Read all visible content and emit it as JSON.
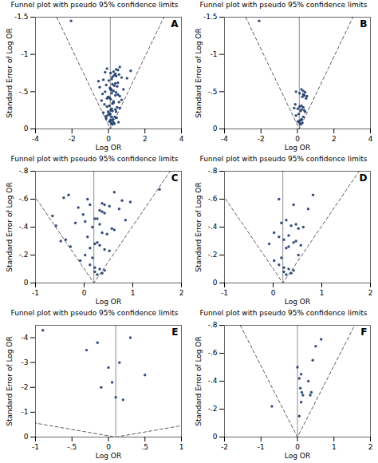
{
  "chart_data": [
    {
      "type": "scatter",
      "title": "Funnel plot with pseudo 95% confidence limits",
      "xlabel": "Log OR",
      "ylabel": "Standard Error of Log OR",
      "annotation": "A",
      "color": "#1f3c6e",
      "xlim": [
        -4,
        4
      ],
      "ylim": [
        0,
        -1.5
      ],
      "xticks": [
        -4,
        -2,
        0,
        2,
        4
      ],
      "yticks": [
        0,
        {
          "value": -0.5,
          "label": "-.5"
        },
        -1,
        -1.5
      ],
      "center_line": 0.1,
      "funnel": {
        "x": [
          -2.84,
          0.1,
          3.04
        ],
        "y": [
          -1.5,
          0,
          -1.5
        ],
        "line_style": "dashed"
      },
      "x": [
        0.15,
        0.25,
        0.05,
        0.2,
        -0.05,
        0.35,
        0.1,
        0.3,
        -0.02,
        0.12,
        0.45,
        -0.15,
        0.22,
        0.08,
        -0.12,
        0.55,
        0.02,
        0.32,
        -0.28,
        0.18,
        0.62,
        0.12,
        0.42,
        -0.08,
        0.38,
        -0.22,
        0.18,
        0.48,
        0.05,
        0.22,
        -0.38,
        0.28,
        0.12,
        0.58,
        -0.02,
        0.28,
        0.72,
        -0.08,
        0.22,
        0.05,
        0.18,
        0.38,
        -0.18,
        0.52,
        0.12,
        -0.32,
        0.42,
        0.28,
        0.62,
        0.18,
        0.82,
        0.08,
        0.32,
        -0.48,
        0.22,
        0.48,
        -0.12,
        0.38,
        0.12,
        0.52,
        1.02,
        0.02,
        0.22,
        -0.28,
        0.58,
        0.18,
        0.72,
        0.42,
        -0.55,
        0.32,
        1.22,
        0.12,
        0.42,
        -0.18,
        0.62,
        0.28,
        0.52,
        -0.08,
        0.38,
        -2.05
      ],
      "y": [
        -0.08,
        -0.13,
        -0.1,
        -0.06,
        -0.18,
        -0.16,
        -0.2,
        -0.08,
        -0.23,
        -0.12,
        -0.15,
        -0.17,
        -0.11,
        -0.19,
        -0.14,
        -0.09,
        -0.21,
        -0.07,
        -0.22,
        -0.16,
        -0.28,
        -0.25,
        -0.23,
        -0.3,
        -0.26,
        -0.33,
        -0.27,
        -0.29,
        -0.31,
        -0.24,
        -0.38,
        -0.35,
        -0.4,
        -0.36,
        -0.43,
        -0.37,
        -0.39,
        -0.41,
        -0.34,
        -0.42,
        -0.48,
        -0.45,
        -0.5,
        -0.46,
        -0.53,
        -0.47,
        -0.49,
        -0.51,
        -0.44,
        -0.52,
        -0.53,
        -0.55,
        -0.58,
        -0.56,
        -0.6,
        -0.57,
        -0.59,
        -0.61,
        -0.54,
        -0.62,
        -0.68,
        -0.65,
        -0.7,
        -0.66,
        -0.73,
        -0.67,
        -0.69,
        -0.71,
        -0.64,
        -0.72,
        -0.78,
        -0.75,
        -0.8,
        -0.76,
        -0.83,
        -0.77,
        -0.79,
        -0.81,
        -0.74,
        -1.45
      ]
    },
    {
      "type": "scatter",
      "title": "Funnel plot with pseudo 95% confidence limits",
      "xlabel": "Log OR",
      "ylabel": "Standard Error of Log OR",
      "annotation": "B",
      "color": "#1f3c6e",
      "xlim": [
        -4,
        4
      ],
      "ylim": [
        0,
        -1.5
      ],
      "xticks": [
        -4,
        -2,
        0,
        2,
        4
      ],
      "yticks": [
        0,
        {
          "value": -0.5,
          "label": "-.5"
        },
        -1,
        -1.5
      ],
      "center_line": 0.1,
      "funnel": {
        "x": [
          -2.84,
          0.1,
          3.04
        ],
        "y": [
          -1.5,
          0,
          -1.5
        ],
        "line_style": "dashed"
      },
      "x": [
        0.12,
        0.22,
        0.02,
        0.17,
        -0.08,
        0.32,
        0.07,
        0.27,
        0.22,
        0.12,
        0.42,
        -0.18,
        0.22,
        0.12,
        -0.12,
        0.37,
        0.02,
        0.32,
        0.17,
        0.22,
        0.27,
        0.12,
        0.32,
        -0.08,
        0.37,
        0.47,
        0.22,
        0.42,
        0.52,
        0.32,
        -2.1
      ],
      "y": [
        -0.08,
        -0.13,
        -0.1,
        -0.06,
        -0.18,
        -0.16,
        -0.2,
        -0.08,
        -0.12,
        -0.11,
        -0.23,
        -0.28,
        -0.26,
        -0.3,
        -0.33,
        -0.25,
        -0.27,
        -0.29,
        -0.24,
        -0.31,
        -0.43,
        -0.48,
        -0.46,
        -0.5,
        -0.45,
        -0.41,
        -0.53,
        -0.49,
        -0.44,
        -0.51,
        -1.45
      ]
    },
    {
      "type": "scatter",
      "title": "Funnel plot with pseudo 95% confidence limits",
      "xlabel": "Log OR",
      "ylabel": "Standard Error of Log OR",
      "annotation": "C",
      "color": "#1f3c6e",
      "xlim": [
        -1,
        2
      ],
      "ylim": [
        0,
        -0.8
      ],
      "xticks": [
        -1,
        0,
        1,
        2
      ],
      "yticks": [
        0,
        {
          "value": -0.2,
          "label": "-.2"
        },
        {
          "value": -0.4,
          "label": "-.4"
        },
        {
          "value": -0.6,
          "label": "-.6"
        },
        {
          "value": -0.8,
          "label": "-.8"
        }
      ],
      "center_line": 0.2,
      "funnel": {
        "x": [
          -1.368,
          0.2,
          1.768
        ],
        "y": [
          -0.8,
          0,
          -0.8
        ],
        "line_style": "dashed"
      },
      "x": [
        0.22,
        0.32,
        0.12,
        0.27,
        -0.08,
        0.42,
        0.17,
        0.37,
        0.02,
        0.22,
        0.52,
        -0.28,
        0.22,
        0.12,
        -0.48,
        0.32,
        0.07,
        0.42,
        -0.38,
        0.27,
        0.62,
        0.17,
        0.37,
        -0.18,
        0.47,
        -0.58,
        0.27,
        0.57,
        0.02,
        0.32,
        -0.65,
        0.42,
        0.22,
        0.72,
        -0.02,
        0.37,
        0.85,
        -0.12,
        0.32,
        0.12,
        0.95,
        0.07,
        0.42,
        -0.32,
        0.52,
        -0.42,
        0.62,
        0.37,
        0.78,
        1.55
      ],
      "y": [
        -0.08,
        -0.1,
        -0.13,
        -0.06,
        -0.16,
        -0.09,
        -0.18,
        -0.07,
        -0.2,
        -0.11,
        -0.23,
        -0.26,
        -0.28,
        -0.25,
        -0.3,
        -0.27,
        -0.33,
        -0.24,
        -0.31,
        -0.29,
        -0.38,
        -0.4,
        -0.36,
        -0.43,
        -0.35,
        -0.41,
        -0.46,
        -0.39,
        -0.44,
        -0.42,
        -0.48,
        -0.5,
        -0.46,
        -0.53,
        -0.49,
        -0.51,
        -0.45,
        -0.54,
        -0.52,
        -0.56,
        -0.58,
        -0.6,
        -0.56,
        -0.63,
        -0.55,
        -0.61,
        -0.65,
        -0.57,
        -0.59,
        -0.67
      ]
    },
    {
      "type": "scatter",
      "title": "Funnel plot with pseudo 95% confidence limits",
      "xlabel": "Log OR",
      "ylabel": "Standard Error of Log OR",
      "annotation": "D",
      "color": "#1f3c6e",
      "xlim": [
        -1,
        2
      ],
      "ylim": [
        0,
        -0.8
      ],
      "xticks": [
        -1,
        0,
        1,
        2
      ],
      "yticks": [
        0,
        {
          "value": -0.2,
          "label": "-.2"
        },
        {
          "value": -0.4,
          "label": "-.4"
        },
        {
          "value": -0.6,
          "label": "-.6"
        },
        {
          "value": -0.8,
          "label": "-.8"
        }
      ],
      "center_line": 0.2,
      "funnel": {
        "x": [
          -1.368,
          0.2,
          1.768
        ],
        "y": [
          -0.8,
          0,
          -0.8
        ],
        "line_style": "dashed"
      },
      "x": [
        0.22,
        0.32,
        0.12,
        0.27,
        0.02,
        0.42,
        0.17,
        0.37,
        0.52,
        0.22,
        0.32,
        -0.08,
        0.27,
        0.47,
        0.12,
        0.57,
        0.22,
        0.42,
        0.02,
        0.32,
        0.62,
        0.17,
        0.37,
        0.52,
        0.27,
        0.47,
        0.72,
        0.42,
        0.12,
        0.82
      ],
      "y": [
        -0.08,
        -0.1,
        -0.13,
        -0.06,
        -0.16,
        -0.09,
        -0.18,
        -0.07,
        -0.2,
        -0.11,
        -0.26,
        -0.28,
        -0.25,
        -0.3,
        -0.33,
        -0.27,
        -0.31,
        -0.29,
        -0.36,
        -0.34,
        -0.4,
        -0.43,
        -0.41,
        -0.39,
        -0.45,
        -0.42,
        -0.53,
        -0.56,
        -0.6,
        -0.63
      ]
    },
    {
      "type": "scatter",
      "title": "Funnel plot with pseudo 95% confidence limits",
      "xlabel": "Log OR",
      "ylabel": "Standard Error of Log OR",
      "annotation": "E",
      "color": "#1f3c6e",
      "xlim": [
        -1,
        1
      ],
      "ylim": [
        0,
        -4.5
      ],
      "xticks": [
        -1,
        {
          "value": -0.5,
          "label": "-.5"
        },
        0,
        {
          "value": 0.5,
          "label": ".5"
        },
        1
      ],
      "yticks": [
        0,
        -1,
        -2,
        -3,
        -4
      ],
      "center_line": 0.1,
      "funnel": {
        "x": [
          -8.72,
          0.1,
          8.92
        ],
        "y": [
          -4.5,
          0,
          -4.5
        ],
        "line_style": "dashed"
      },
      "x": [
        0.1,
        -0.1,
        0.15,
        -0.3,
        0.05,
        0.0,
        0.2,
        -0.15,
        0.3,
        0.5,
        -0.9
      ],
      "y": [
        -1.6,
        -2.0,
        -3.0,
        -3.5,
        -2.2,
        -2.8,
        -1.5,
        -3.8,
        -4.0,
        -2.5,
        -4.3
      ]
    },
    {
      "type": "scatter",
      "title": "Funnel plot with pseudo 95% confidence limits",
      "xlabel": "Log OR",
      "ylabel": "Standard Error of Log OR",
      "annotation": "F",
      "color": "#1f3c6e",
      "xlim": [
        -2,
        2
      ],
      "ylim": [
        0,
        -0.8
      ],
      "xticks": [
        -2,
        -1,
        0,
        1,
        2
      ],
      "yticks": [
        0,
        {
          "value": -0.2,
          "label": "-.2"
        },
        {
          "value": -0.4,
          "label": "-.4"
        },
        {
          "value": -0.6,
          "label": "-.6"
        },
        {
          "value": -0.8,
          "label": "-.8"
        }
      ],
      "center_line": 0.0,
      "funnel": {
        "x": [
          -1.568,
          0.0,
          1.568
        ],
        "y": [
          -0.8,
          0,
          -0.8
        ],
        "line_style": "dashed"
      },
      "x": [
        -0.7,
        0.05,
        0.1,
        0.15,
        0.12,
        0.08,
        0.35,
        0.38,
        0.3,
        0.05,
        0.1,
        0.0,
        0.42,
        0.5,
        0.65
      ],
      "y": [
        -0.22,
        -0.15,
        -0.25,
        -0.3,
        -0.32,
        -0.35,
        -0.3,
        -0.32,
        -0.4,
        -0.42,
        -0.45,
        -0.5,
        -0.55,
        -0.65,
        -0.7
      ]
    }
  ]
}
